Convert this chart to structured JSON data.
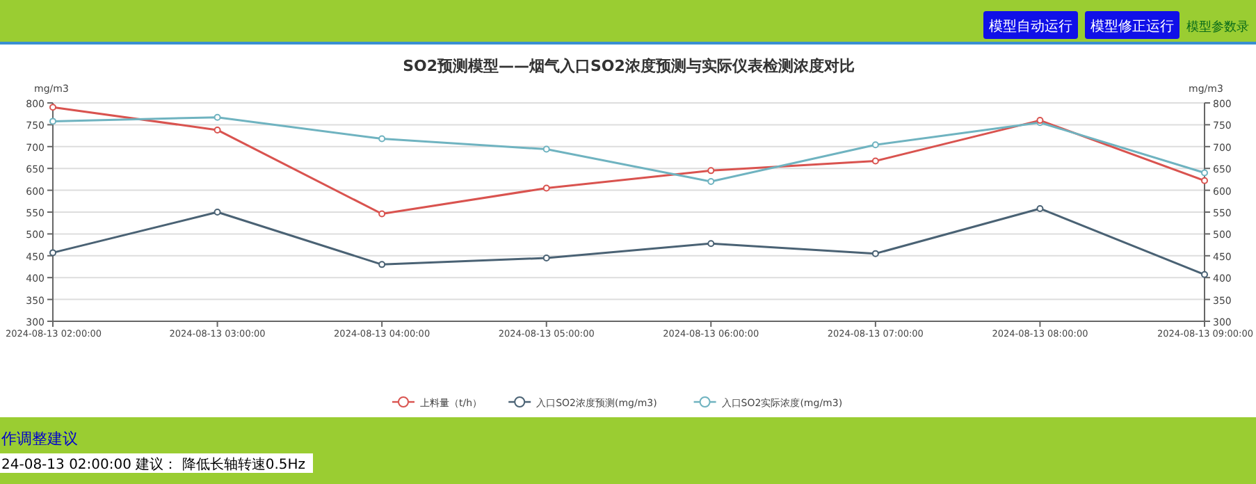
{
  "chart_data": {
    "type": "line",
    "title": "SO2预测模型——烟气入口SO2浓度预测与实际仪表检测浓度对比",
    "categories": [
      "2024-08-13 02:00:00",
      "2024-08-13 03:00:00",
      "2024-08-13 04:00:00",
      "2024-08-13 05:00:00",
      "2024-08-13 06:00:00",
      "2024-08-13 07:00:00",
      "2024-08-13 08:00:00",
      "2024-08-13 09:00:00"
    ],
    "series": [
      {
        "name": "上料量（t/h）",
        "color": "#d9534f",
        "values": [
          790,
          738,
          546,
          605,
          645,
          667,
          760,
          622
        ]
      },
      {
        "name": "入口SO2浓度预测(mg/m3)",
        "color": "#4a6274",
        "values": [
          457,
          550,
          430,
          445,
          478,
          455,
          558,
          407
        ]
      },
      {
        "name": "入口SO2实际浓度(mg/m3)",
        "color": "#6fb3c0",
        "values": [
          758,
          767,
          718,
          694,
          620,
          704,
          755,
          640
        ]
      }
    ],
    "ylabel": "mg/m3",
    "y2label": "mg/m3",
    "ylim": [
      300,
      800
    ],
    "yticks": [
      300,
      350,
      400,
      450,
      500,
      550,
      600,
      650,
      700,
      750,
      800
    ],
    "y2lim": [
      300,
      800
    ],
    "y2ticks": [
      300,
      350,
      400,
      450,
      500,
      550,
      600,
      650,
      700,
      750,
      800
    ],
    "grid": "y",
    "legend": "bottom",
    "marker": "circle",
    "line_style": "solid",
    "annotations": [
      "模型自动运行",
      "模型修正运行",
      "模型参数录",
      "作调整建议",
      "24-08-13 02:00:00 建议： 降低长轴转速0.5Hz"
    ]
  }
}
